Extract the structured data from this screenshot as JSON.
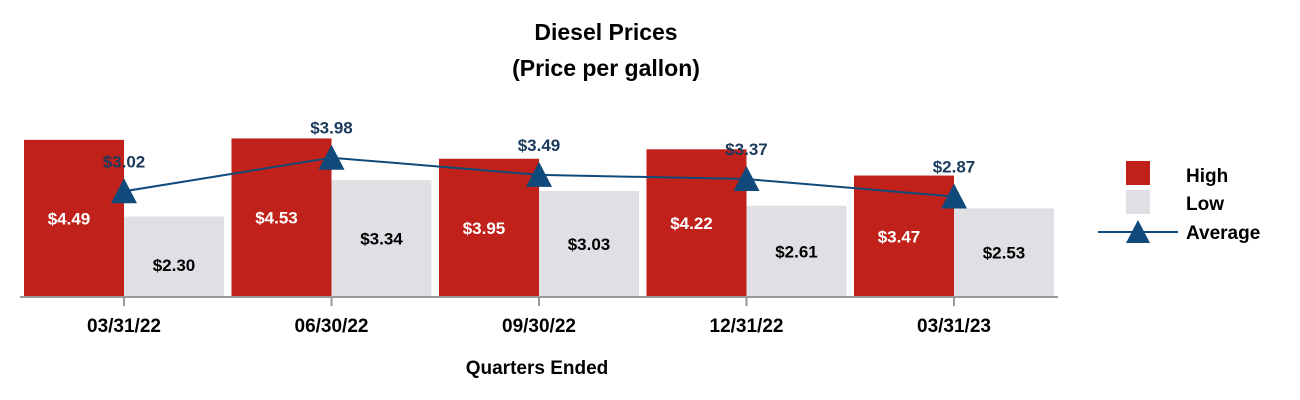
{
  "chart_data": {
    "type": "bar",
    "title": "Diesel Prices",
    "subtitle": "(Price per gallon)",
    "xlabel": "Quarters Ended",
    "ylabel": "",
    "categories": [
      "03/31/22",
      "06/30/22",
      "09/30/22",
      "12/31/22",
      "03/31/23"
    ],
    "series": [
      {
        "name": "High",
        "kind": "bar",
        "color": "#C0211A",
        "values": [
          4.49,
          4.53,
          3.95,
          4.22,
          3.47
        ],
        "labels": [
          "$4.49",
          "$4.53",
          "$3.95",
          "$4.22",
          "$3.47"
        ]
      },
      {
        "name": "Low",
        "kind": "bar",
        "color": "#DFE0E4",
        "values": [
          2.3,
          3.34,
          3.03,
          2.61,
          2.53
        ],
        "labels": [
          "$2.30",
          "$3.34",
          "$3.03",
          "$2.61",
          "$2.53"
        ]
      },
      {
        "name": "Average",
        "kind": "line",
        "marker": "triangle",
        "color": "#0F4A7A",
        "values": [
          3.02,
          3.98,
          3.49,
          3.37,
          2.87
        ],
        "labels": [
          "$3.02",
          "$3.98",
          "$3.49",
          "$3.37",
          "$2.87"
        ]
      }
    ],
    "ylim": [
      0,
      5.6
    ],
    "grid": false,
    "legend": "right"
  }
}
